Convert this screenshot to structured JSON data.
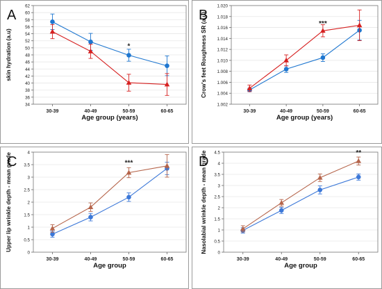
{
  "chart_data": [
    {
      "type": "line",
      "panel_label": "A",
      "xlabel": "Age group (years)",
      "ylabel": "skin hydration (a.u)",
      "categories": [
        "30-39",
        "40-49",
        "50-59",
        "60-65"
      ],
      "ylim": [
        34,
        62
      ],
      "yticks": [
        "34",
        "36",
        "38",
        "40",
        "42",
        "44",
        "46",
        "48",
        "50",
        "52",
        "54",
        "56",
        "58",
        "60",
        "62"
      ],
      "annotations": [
        {
          "category": "50-59",
          "text": "*",
          "y": 49.9
        }
      ],
      "series": [
        {
          "color": "#1f77d0",
          "marker": "circle",
          "values": [
            57.4,
            51.7,
            47.9,
            44.9
          ],
          "errors": [
            2.2,
            2.4,
            1.7,
            2.8
          ]
        },
        {
          "color": "#d62020",
          "marker": "triangle",
          "values": [
            54.6,
            49.0,
            40.1,
            39.6
          ],
          "errors": [
            2.0,
            2.0,
            2.4,
            3.1
          ]
        }
      ]
    },
    {
      "type": "line",
      "panel_label": "B",
      "xlabel": "Age group (years)",
      "ylabel": "Crow's feet Roughness SR (a.u)",
      "categories": [
        "30-39",
        "40-49",
        "50-59",
        "60-65"
      ],
      "ylim": [
        1.002,
        1.02
      ],
      "yticks": [
        "1.002",
        "1.004",
        "1.006",
        "1.008",
        "1.010",
        "1.012",
        "1.014",
        "1.016",
        "1.018",
        "1.020"
      ],
      "annotations": [
        {
          "category": "50-59",
          "text": "***",
          "y": 1.0163
        }
      ],
      "series": [
        {
          "color": "#1f77d0",
          "marker": "circle",
          "values": [
            1.0046,
            1.0084,
            1.0105,
            1.0155
          ],
          "errors": [
            0.0003,
            0.0006,
            0.0007,
            0.0018
          ]
        },
        {
          "color": "#d62020",
          "marker": "triangle",
          "values": [
            1.0049,
            1.01,
            1.0154,
            1.0164
          ],
          "errors": [
            0.0006,
            0.001,
            0.0011,
            0.0028
          ]
        }
      ]
    },
    {
      "type": "line",
      "panel_label": "C",
      "xlabel": "Age group",
      "ylabel": "Upper lip wrinkle depth - mean grade",
      "categories": [
        "30-39",
        "40-49",
        "50-59",
        "60-65"
      ],
      "ylim": [
        0,
        4
      ],
      "yticks": [
        "0",
        "0.5",
        "1",
        "1.5",
        "2",
        "2.5",
        "3",
        "3.5",
        "4"
      ],
      "annotations": [
        {
          "category": "50-59",
          "text": "***",
          "y": 3.48
        }
      ],
      "series": [
        {
          "color": "#3c78d8",
          "marker": "circle",
          "values": [
            0.72,
            1.4,
            2.2,
            3.35
          ],
          "errors": [
            0.12,
            0.15,
            0.17,
            0.25
          ]
        },
        {
          "color": "#b5644a",
          "marker": "triangle",
          "values": [
            0.95,
            1.8,
            3.18,
            3.45
          ],
          "errors": [
            0.15,
            0.17,
            0.2,
            0.45
          ]
        }
      ]
    },
    {
      "type": "line",
      "panel_label": "D",
      "xlabel": "Age group",
      "ylabel": "Nasolabial wrinkle depth - mean grade",
      "categories": [
        "30-39",
        "40-49",
        "50-59",
        "60-65"
      ],
      "ylim": [
        0,
        4.5
      ],
      "yticks": [
        "0",
        "0.5",
        "1",
        "1.5",
        "2",
        "2.5",
        "3",
        "3.5",
        "4",
        "4.5"
      ],
      "annotations": [
        {
          "category": "60-65",
          "text": "**",
          "y": 4.38
        }
      ],
      "series": [
        {
          "color": "#3c78d8",
          "marker": "circle",
          "values": [
            0.98,
            1.88,
            2.8,
            3.38
          ],
          "errors": [
            0.12,
            0.14,
            0.18,
            0.14
          ]
        },
        {
          "color": "#b5644a",
          "marker": "triangle",
          "values": [
            1.05,
            2.22,
            3.35,
            4.1
          ],
          "errors": [
            0.14,
            0.15,
            0.17,
            0.18
          ]
        }
      ]
    }
  ]
}
